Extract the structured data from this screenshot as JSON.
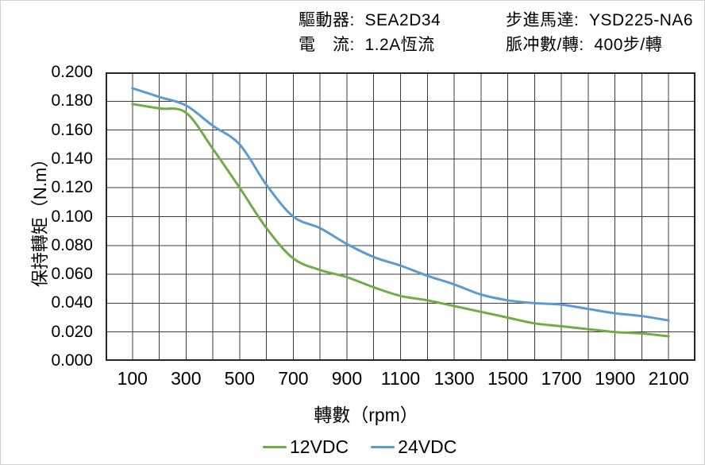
{
  "header": {
    "line1_left": "驅動器:  SEA2D34",
    "line1_right": "步進馬達:  YSD225-NA6",
    "line2_left": "電　流:  1.2A恆流",
    "line2_right": "脈冲數/轉:  400步/轉"
  },
  "chart_data": {
    "type": "line",
    "title": "",
    "xlabel": "轉數（rpm）",
    "ylabel": "保持轉矩（N.m）",
    "xlim": [
      0,
      2200
    ],
    "ylim": [
      0,
      0.2
    ],
    "grid": "both axes, x every 100 rpm, y every 0.020 N.m",
    "legend_position": "bottom-center",
    "x_tick_labels": [
      "100",
      "300",
      "500",
      "700",
      "900",
      "1100",
      "1300",
      "1500",
      "1700",
      "1900",
      "2100"
    ],
    "x_tick_values": [
      100,
      300,
      500,
      700,
      900,
      1100,
      1300,
      1500,
      1700,
      1900,
      2100
    ],
    "y_tick_labels": [
      "0.200",
      "0.180",
      "0.160",
      "0.140",
      "0.120",
      "0.100",
      "0.080",
      "0.060",
      "0.040",
      "0.020",
      "0.000"
    ],
    "x": [
      100,
      200,
      300,
      400,
      500,
      600,
      700,
      800,
      900,
      1000,
      1100,
      1200,
      1300,
      1400,
      1500,
      1600,
      1700,
      1800,
      1900,
      2000,
      2100
    ],
    "series": [
      {
        "name": "12VDC",
        "color": "#70AD47",
        "values": [
          0.178,
          0.175,
          0.172,
          0.147,
          0.12,
          0.092,
          0.071,
          0.063,
          0.058,
          0.051,
          0.045,
          0.042,
          0.038,
          0.034,
          0.03,
          0.026,
          0.024,
          0.022,
          0.02,
          0.019,
          0.017
        ]
      },
      {
        "name": "24VDC",
        "color": "#5B9BD5",
        "values": [
          0.189,
          0.183,
          0.177,
          0.163,
          0.15,
          0.122,
          0.1,
          0.092,
          0.081,
          0.072,
          0.066,
          0.059,
          0.053,
          0.046,
          0.042,
          0.04,
          0.039,
          0.036,
          0.033,
          0.031,
          0.028
        ]
      }
    ],
    "style": {
      "grid_color": "#3c3c3c",
      "border_color": "#262626",
      "line_width": 3
    }
  }
}
